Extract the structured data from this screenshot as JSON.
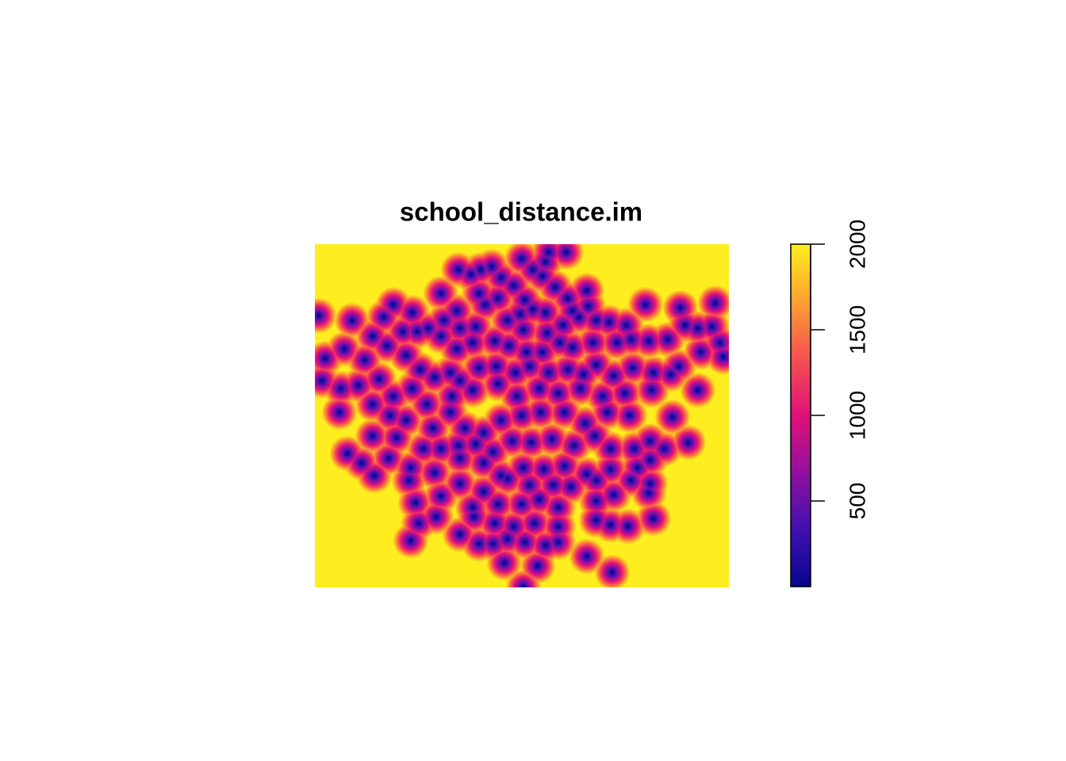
{
  "chart_data": {
    "type": "image",
    "title": "school_distance.im",
    "zlim": [
      0,
      2000
    ],
    "zticks": [
      500,
      1000,
      1500,
      2000
    ],
    "xlim": [
      0,
      47000
    ],
    "ylim": [
      0,
      39000
    ],
    "colors": [
      "#06068c",
      "#4010b0",
      "#9010a0",
      "#e0107a",
      "#f55050",
      "#fca030",
      "#ffee1f"
    ],
    "points": {
      "x": [
        16290,
        17730,
        18810,
        20070,
        21150,
        23490,
        24750,
        26190,
        26550,
        28530,
        25830,
        27270,
        14310,
        18630,
        19350,
        20790,
        22590,
        23850,
        24750,
        26190,
        28710,
        30870,
        31050,
        29250,
        8910,
        11070,
        12870,
        14670,
        16110,
        16470,
        18270,
        21870,
        23310,
        23670,
        26370,
        28170,
        29970,
        31950,
        33390,
        35370,
        37530,
        41490,
        45450,
        450,
        4230,
        6570,
        7830,
        9990,
        11610,
        14310,
        16110,
        17910,
        20430,
        22050,
        24030,
        25830,
        27810,
        29250,
        31590,
        34290,
        35910,
        37890,
        40050,
        42030,
        43470,
        45090,
        45990,
        1170,
        3330,
        5670,
        8190,
        10350,
        11970,
        13590,
        15390,
        16470,
        18630,
        20610,
        22770,
        24390,
        26550,
        28710,
        30510,
        31950,
        33930,
        36090,
        38430,
        41310,
        43830,
        46350,
        810,
        2970,
        4950,
        7290,
        8910,
        11070,
        12690,
        15570,
        17910,
        20790,
        22950,
        25470,
        27630,
        30150,
        32670,
        35190,
        38250,
        40410,
        43470,
        2790,
        6570,
        8550,
        10350,
        13410,
        15390,
        17010,
        19170,
        21150,
        23490,
        25650,
        28350,
        30690,
        33210,
        35730,
        40590,
        6570,
        9270,
        12330,
        14310,
        16290,
        18270,
        20250,
        22410,
        24570,
        26910,
        29430,
        31770,
        33570,
        36270,
        38070,
        39690,
        42390,
        3690,
        5310,
        8370,
        10890,
        13590,
        16470,
        19170,
        21150,
        23670,
        26010,
        28350,
        30870,
        33570,
        36630,
        38070,
        6750,
        10710,
        16470,
        19170,
        21870,
        24390,
        27090,
        29070,
        31950,
        35910,
        38070,
        11430,
        14310,
        17910,
        20790,
        23490,
        25470,
        27630,
        31950,
        33930,
        37890,
        11790,
        13770,
        18090,
        20430,
        22590,
        24930,
        27630,
        31950,
        33570,
        35550,
        38430,
        10890,
        16470,
        18630,
        20250,
        21870,
        23850,
        26190,
        27630,
        21510,
        25290,
        30870,
        33750,
        23670
      ],
      "y": [
        36090,
        35550,
        36090,
        36450,
        35190,
        37350,
        36090,
        36990,
        38070,
        38070,
        35370,
        34110,
        33390,
        33390,
        32130,
        32850,
        34290,
        32670,
        31590,
        31230,
        32850,
        33750,
        31950,
        31410,
        32130,
        31230,
        29430,
        30330,
        31410,
        29430,
        29610,
        30330,
        31050,
        29250,
        28890,
        29790,
        30690,
        30330,
        30150,
        29790,
        32130,
        31770,
        32310,
        30870,
        30330,
        28530,
        30690,
        29070,
        29070,
        28530,
        27090,
        27810,
        27990,
        27450,
        26730,
        26730,
        27810,
        27270,
        27810,
        27810,
        28170,
        27990,
        28170,
        29790,
        29430,
        29610,
        27810,
        26010,
        27090,
        25830,
        27450,
        26370,
        24750,
        23850,
        24390,
        23490,
        24930,
        25110,
        24390,
        25110,
        24390,
        24750,
        24210,
        25290,
        24030,
        24930,
        24390,
        25110,
        26730,
        26190,
        23490,
        22590,
        22950,
        23670,
        21690,
        22590,
        20790,
        21690,
        22410,
        23130,
        21690,
        22590,
        22050,
        22590,
        21690,
        22050,
        22410,
        24210,
        22410,
        19890,
        20790,
        19530,
        18990,
        18090,
        19890,
        18090,
        17550,
        18990,
        19530,
        19890,
        19890,
        18630,
        19890,
        19530,
        19350,
        17190,
        17010,
        15750,
        15750,
        16110,
        16290,
        15390,
        16650,
        16470,
        16830,
        16110,
        17190,
        15750,
        15750,
        16650,
        15750,
        16470,
        15210,
        14130,
        14670,
        13590,
        13050,
        14670,
        14130,
        12690,
        13590,
        13410,
        13770,
        12870,
        13410,
        13590,
        14490,
        12690,
        12150,
        11790,
        10890,
        12330,
        11610,
        11610,
        11430,
        12150,
        12150,
        11790,
        9630,
        10350,
        9090,
        9450,
        9450,
        9990,
        9090,
        9810,
        10530,
        10710,
        7290,
        8010,
        8010,
        7290,
        6930,
        7290,
        6930,
        7650,
        7110,
        6930,
        7830,
        5310,
        6030,
        4950,
        4950,
        5490,
        5130,
        4770,
        5130,
        2790,
        2430,
        3510,
        1710,
        90
      ]
    }
  }
}
